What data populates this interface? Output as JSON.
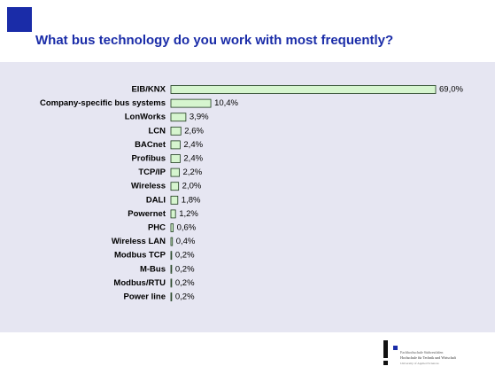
{
  "chart_data": {
    "type": "bar",
    "orientation": "horizontal",
    "title": "What bus technology do you work with most frequently?",
    "categories": [
      "EIB/KNX",
      "Company-specific bus systems",
      "LonWorks",
      "LCN",
      "BACnet",
      "Profibus",
      "TCP/IP",
      "Wireless",
      "DALI",
      "Powernet",
      "PHC",
      "Wireless LAN",
      "Modbus TCP",
      "M-Bus",
      "Modbus/RTU",
      "Power line"
    ],
    "values": [
      69.0,
      10.4,
      3.9,
      2.6,
      2.4,
      2.4,
      2.2,
      2.0,
      1.8,
      1.2,
      0.6,
      0.4,
      0.2,
      0.2,
      0.2,
      0.2
    ],
    "value_labels": [
      "69,0%",
      "10,4%",
      "3,9%",
      "2,6%",
      "2,4%",
      "2,4%",
      "2,2%",
      "2,0%",
      "1,8%",
      "1,2%",
      "0,6%",
      "0,4%",
      "0,2%",
      "0,2%",
      "0,2%",
      "0,2%"
    ],
    "color": "#d6f5cf"
  },
  "logo": {
    "lines": [
      "Fachhochschule Südwestfalen",
      "Hochschule für Technik und Wirtschaft",
      "University of Applied Sciences"
    ]
  }
}
